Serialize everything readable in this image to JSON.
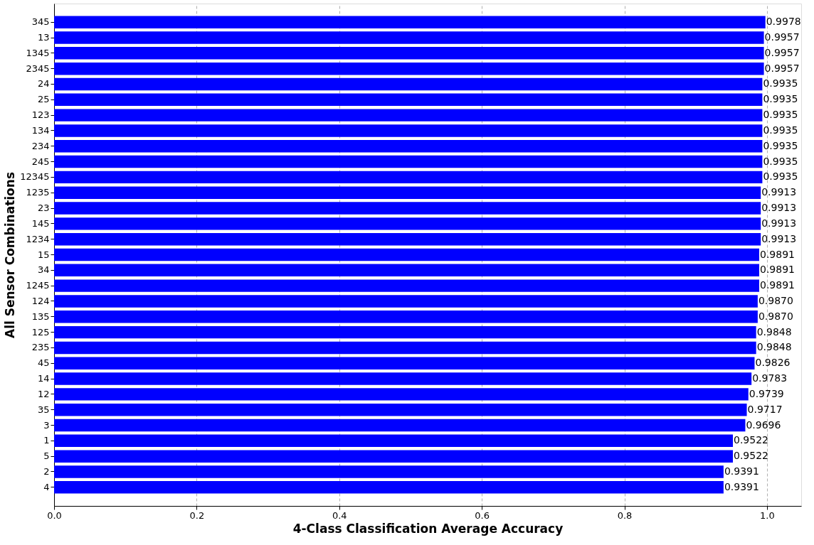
{
  "chart_data": {
    "type": "bar",
    "orientation": "horizontal",
    "xlabel": "4-Class Classification Average Accuracy",
    "ylabel": "All Sensor Combinations",
    "categories": [
      "345",
      "13",
      "1345",
      "2345",
      "24",
      "25",
      "123",
      "134",
      "234",
      "245",
      "12345",
      "1235",
      "23",
      "145",
      "1234",
      "15",
      "34",
      "1245",
      "124",
      "135",
      "125",
      "235",
      "45",
      "14",
      "12",
      "35",
      "3",
      "1",
      "5",
      "2",
      "4"
    ],
    "values": [
      0.9978,
      0.9957,
      0.9957,
      0.9957,
      0.9935,
      0.9935,
      0.9935,
      0.9935,
      0.9935,
      0.9935,
      0.9935,
      0.9913,
      0.9913,
      0.9913,
      0.9913,
      0.9891,
      0.9891,
      0.9891,
      0.987,
      0.987,
      0.9848,
      0.9848,
      0.9826,
      0.9783,
      0.9739,
      0.9717,
      0.9696,
      0.9522,
      0.9522,
      0.9391,
      0.9391
    ],
    "value_labels": [
      "0.9978",
      "0.9957",
      "0.9957",
      "0.9957",
      "0.9935",
      "0.9935",
      "0.9935",
      "0.9935",
      "0.9935",
      "0.9935",
      "0.9935",
      "0.9913",
      "0.9913",
      "0.9913",
      "0.9913",
      "0.9891",
      "0.9891",
      "0.9891",
      "0.9870",
      "0.9870",
      "0.9848",
      "0.9848",
      "0.9826",
      "0.9783",
      "0.9739",
      "0.9717",
      "0.9696",
      "0.9522",
      "0.9522",
      "0.9391",
      "0.9391"
    ],
    "color": "#0000ff",
    "xlim": [
      0,
      1.048
    ],
    "xticks": [
      {
        "value": 0,
        "label": "0.0"
      },
      0.2,
      0.4,
      0.6,
      0.8,
      {
        "value": 1,
        "label": "1.0"
      }
    ],
    "grid": "x",
    "line_style": "dashed"
  }
}
